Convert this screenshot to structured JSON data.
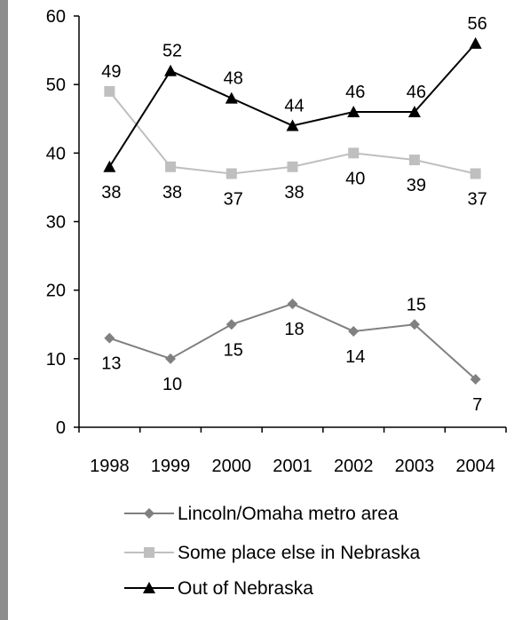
{
  "chart_data": {
    "type": "line",
    "title": "",
    "xlabel": "",
    "ylabel": "",
    "categories": [
      "1998",
      "1999",
      "2000",
      "2001",
      "2002",
      "2003",
      "2004"
    ],
    "ylim": [
      0,
      60
    ],
    "yticks": [
      0,
      10,
      20,
      30,
      40,
      50,
      60
    ],
    "grid": false,
    "legend_position": "bottom",
    "series": [
      {
        "name": "Lincoln/Omaha metro area",
        "values": [
          13,
          10,
          15,
          18,
          14,
          15,
          7
        ],
        "labels": [
          "13",
          "10",
          "15",
          "18",
          "14",
          "15",
          "7"
        ],
        "label_side": [
          "below",
          "below",
          "below",
          "below",
          "below",
          "above",
          "below"
        ],
        "color": "#808080",
        "marker": "diamond"
      },
      {
        "name": "Some place else in Nebraska",
        "values": [
          49,
          38,
          37,
          38,
          40,
          39,
          37
        ],
        "labels": [
          "49",
          "38",
          "37",
          "38",
          "40",
          "39",
          "37"
        ],
        "label_side": [
          "above",
          "below",
          "below",
          "below",
          "below",
          "below",
          "below"
        ],
        "color": "#bfbfbf",
        "marker": "square"
      },
      {
        "name": "Out of Nebraska",
        "values": [
          38,
          52,
          48,
          44,
          46,
          46,
          56
        ],
        "labels": [
          "38",
          "52",
          "48",
          "44",
          "46",
          "46",
          "56"
        ],
        "label_side": [
          "below",
          "above",
          "above",
          "above",
          "above",
          "above",
          "above"
        ],
        "color": "#000000",
        "marker": "triangle"
      }
    ]
  }
}
